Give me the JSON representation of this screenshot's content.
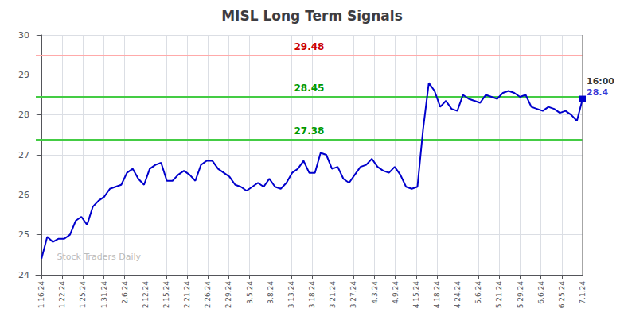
{
  "chart_data": {
    "type": "line",
    "title": "MISL Long Term Signals",
    "color": "#0000cc",
    "grid": true,
    "x": [
      0,
      1,
      2,
      3,
      4,
      5,
      6,
      7,
      8,
      9,
      10,
      11,
      12,
      13,
      14,
      15,
      16,
      17,
      18,
      19,
      20,
      21,
      22,
      23,
      24,
      25,
      26,
      27,
      28,
      29,
      30,
      31,
      32,
      33,
      34,
      35,
      36,
      37,
      38,
      39,
      40,
      41,
      42,
      43,
      44,
      45,
      46,
      47,
      48,
      49,
      50,
      51,
      52,
      53,
      54,
      55,
      56,
      57,
      58,
      59,
      60,
      61,
      62,
      63,
      64,
      65,
      66,
      67,
      68,
      69,
      70,
      71,
      72,
      73,
      74,
      75,
      76,
      77,
      78,
      79,
      80,
      81,
      82,
      83,
      84,
      85,
      86,
      87,
      88,
      89,
      90,
      91,
      92,
      93,
      94,
      95
    ],
    "values": [
      24.4,
      24.95,
      24.82,
      24.9,
      24.9,
      25.0,
      25.35,
      25.45,
      25.25,
      25.7,
      25.85,
      25.95,
      26.15,
      26.2,
      26.25,
      26.55,
      26.65,
      26.4,
      26.25,
      26.65,
      26.75,
      26.8,
      26.35,
      26.35,
      26.5,
      26.6,
      26.5,
      26.35,
      26.75,
      26.85,
      26.85,
      26.65,
      26.55,
      26.45,
      26.25,
      26.2,
      26.1,
      26.2,
      26.3,
      26.2,
      26.4,
      26.2,
      26.15,
      26.3,
      26.55,
      26.65,
      26.85,
      26.55,
      26.55,
      27.05,
      27.0,
      26.65,
      26.7,
      26.4,
      26.3,
      26.5,
      26.7,
      26.75,
      26.9,
      26.7,
      26.6,
      26.55,
      26.7,
      26.5,
      26.2,
      26.15,
      26.2,
      27.65,
      28.8,
      28.6,
      28.2,
      28.35,
      28.15,
      28.1,
      28.5,
      28.4,
      28.35,
      28.3,
      28.5,
      28.45,
      28.4,
      28.55,
      28.6,
      28.55,
      28.45,
      28.5,
      28.2,
      28.15,
      28.1,
      28.2,
      28.15,
      28.05,
      28.1,
      28.0,
      27.85,
      28.4
    ],
    "xlim": [
      -1,
      95
    ],
    "xticks": [
      {
        "value": 0,
        "label": "1.16.24"
      },
      {
        "value": 3.653846153846154,
        "label": "1.22.24"
      },
      {
        "value": 7.307692307692308,
        "label": "1.25.24"
      },
      {
        "value": 10.961538461538462,
        "label": "1.31.24"
      },
      {
        "value": 14.615384615384615,
        "label": "2.6.24"
      },
      {
        "value": 18.26923076923077,
        "label": "2.12.24"
      },
      {
        "value": 21.923076923076923,
        "label": "2.15.24"
      },
      {
        "value": 25.576923076923077,
        "label": "2.21.24"
      },
      {
        "value": 29.23076923076923,
        "label": "2.26.24"
      },
      {
        "value": 32.88461538461539,
        "label": "2.29.24"
      },
      {
        "value": 36.53846153846154,
        "label": "3.5.24"
      },
      {
        "value": 40.19230769230769,
        "label": "3.8.24"
      },
      {
        "value": 43.84615384615385,
        "label": "3.13.24"
      },
      {
        "value": 47.5,
        "label": "3.18.24"
      },
      {
        "value": 51.15384615384615,
        "label": "3.21.24"
      },
      {
        "value": 54.80769230769231,
        "label": "3.27.24"
      },
      {
        "value": 58.46153846153846,
        "label": "4.3.24"
      },
      {
        "value": 62.11538461538461,
        "label": "4.9.24"
      },
      {
        "value": 65.76923076923077,
        "label": "4.15.24"
      },
      {
        "value": 69.42307692307692,
        "label": "4.18.24"
      },
      {
        "value": 73.07692307692308,
        "label": "4.24.24"
      },
      {
        "value": 76.73076923076923,
        "label": "5.6.24"
      },
      {
        "value": 80.38461538461539,
        "label": "5.21.24"
      },
      {
        "value": 84.03846153846153,
        "label": "5.29.24"
      },
      {
        "value": 87.6923076923077,
        "label": "6.6.24"
      },
      {
        "value": 91.34615384615384,
        "label": "6.25.24"
      },
      {
        "value": 95,
        "label": "7.1.24"
      }
    ],
    "ylim": [
      24,
      30
    ],
    "yticks": [
      24,
      25,
      26,
      27,
      28,
      29,
      30
    ],
    "reference_lines": [
      {
        "value": 29.48,
        "label": "29.48",
        "color": "#ffaaaa",
        "label_color": "#cc0000"
      },
      {
        "value": 28.45,
        "label": "28.45",
        "color": "#44cc44",
        "label_color": "#009900"
      },
      {
        "value": 27.38,
        "label": "27.38",
        "color": "#44cc44",
        "label_color": "#009900"
      }
    ],
    "annotations": [
      {
        "text": "Stock Traders Daily",
        "x": 2,
        "y": 24.28,
        "color": "#aaaaaa"
      },
      {
        "text": "28.4",
        "x": 95,
        "y": 28.4,
        "color": "#0000cc"
      },
      {
        "text": "16:00",
        "x": 95,
        "y": 28.4,
        "color": "#000000"
      }
    ]
  }
}
